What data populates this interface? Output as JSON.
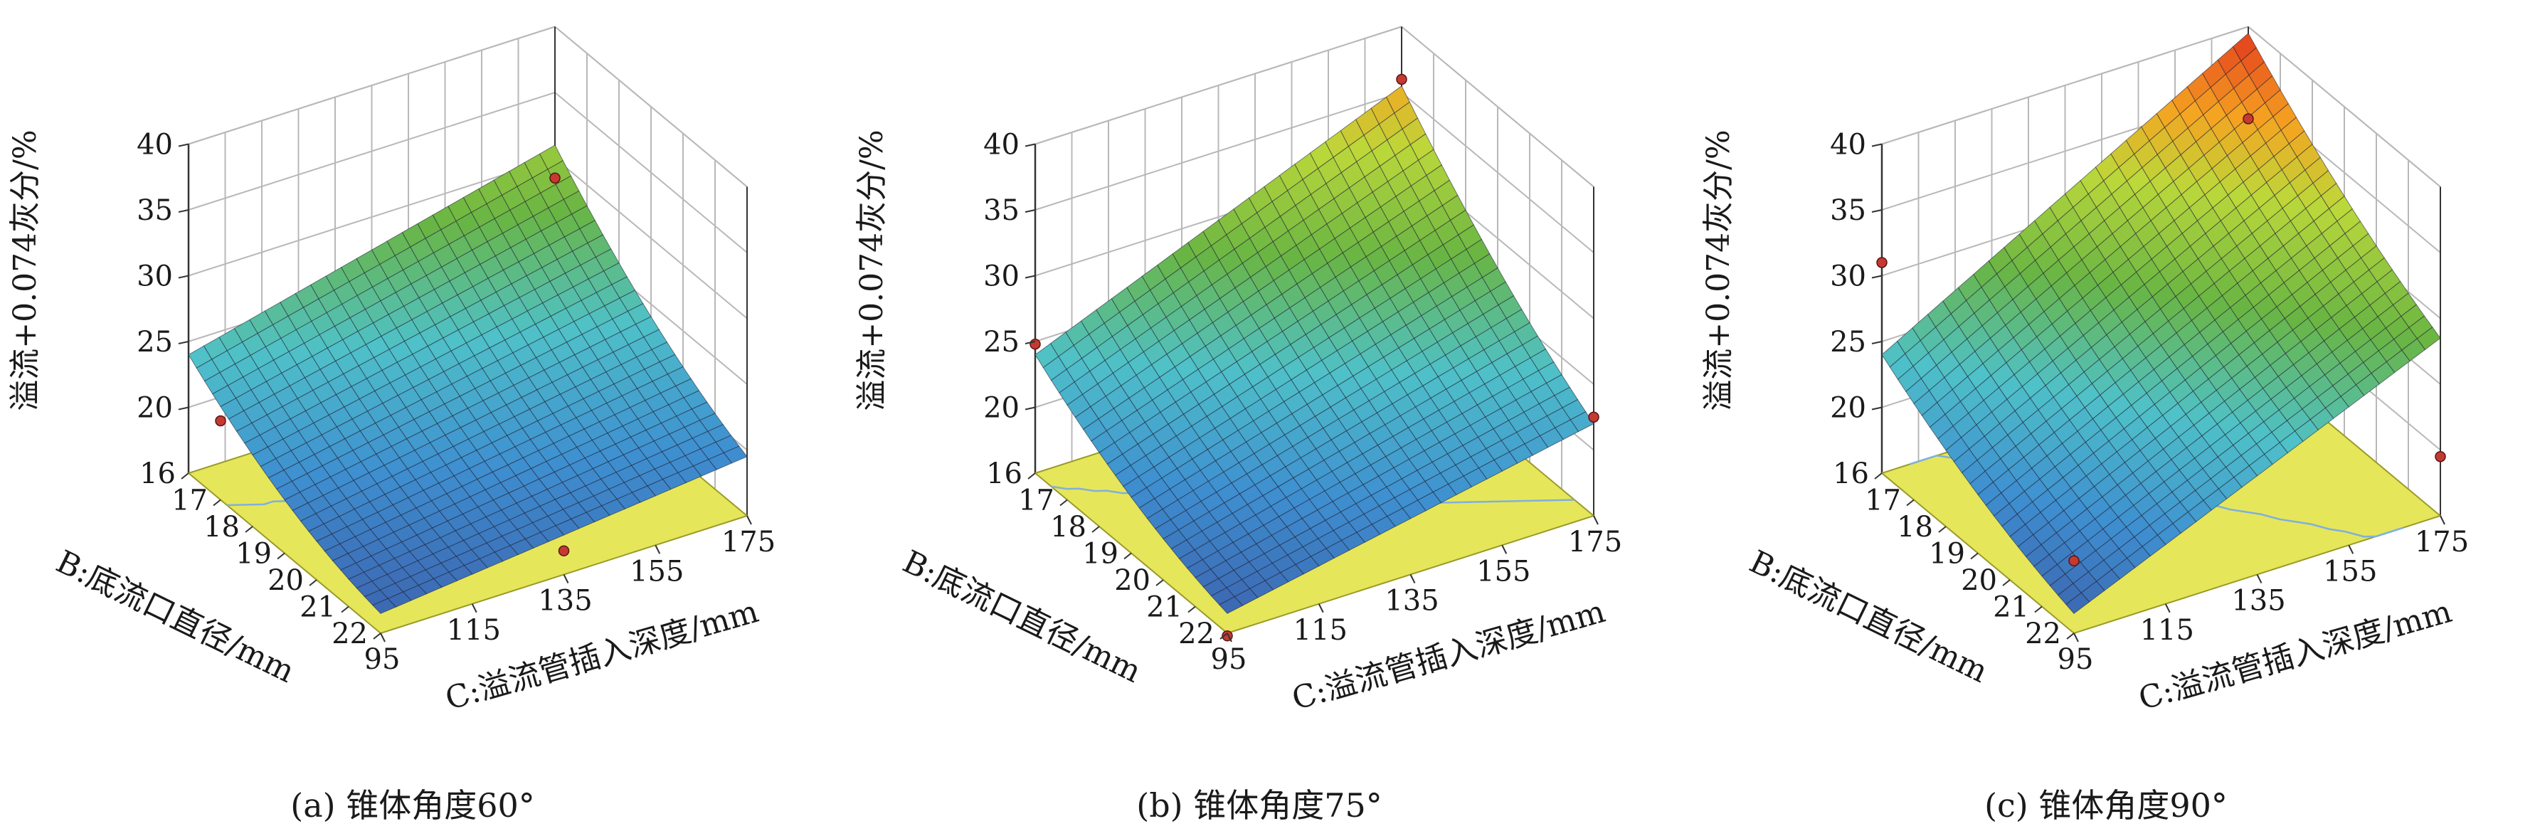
{
  "colors": {
    "floor": "#e6e65a",
    "floor_edge": "#9a9a2a",
    "contour": "#7fb0dd",
    "surface_low": "#3b4a9b",
    "surface_mid": "#69b543",
    "surface_high": "#e12a1c",
    "marker": "#c43a32"
  },
  "chart_data": [
    {
      "type": "surface3d",
      "caption": "(a) 锥体角度60°",
      "zlabel": "溢流+0.074灰分/%",
      "blabel": "B:底流口直径/mm",
      "clabel": "C:溢流管插入深度/mm",
      "b_ticks": [
        "16",
        "17",
        "18",
        "19",
        "20",
        "21",
        "22"
      ],
      "c_ticks": [
        "95",
        "115",
        "135",
        "155",
        "175"
      ],
      "z_ticks": [
        "20",
        "25",
        "30",
        "35",
        "40"
      ],
      "b_range": [
        16,
        22
      ],
      "c_range": [
        95,
        175
      ],
      "z_range": [
        15,
        40
      ],
      "corners": {
        "b16_c95": 24.0,
        "b16_c175": 31.0,
        "b22_c95": 16.5,
        "b22_c175": 19.5
      },
      "curvature": 1.2,
      "points": [
        {
          "b": 17.0,
          "c": 95,
          "z": 21.0
        },
        {
          "b": 16.0,
          "c": 175,
          "z": 28.5
        },
        {
          "b": 22.0,
          "c": 135,
          "z": 16.8
        }
      ]
    },
    {
      "type": "surface3d",
      "caption": "(b) 锥体角度75°",
      "zlabel": "溢流+0.074灰分/%",
      "blabel": "B:底流口直径/mm",
      "clabel": "C:溢流管插入深度/mm",
      "b_ticks": [
        "16",
        "17",
        "18",
        "19",
        "20",
        "21",
        "22"
      ],
      "c_ticks": [
        "95",
        "115",
        "135",
        "155",
        "175"
      ],
      "z_ticks": [
        "20",
        "25",
        "30",
        "35",
        "40"
      ],
      "b_range": [
        16,
        22
      ],
      "c_range": [
        95,
        175
      ],
      "z_range": [
        15,
        40
      ],
      "corners": {
        "b16_c95": 24.0,
        "b16_c175": 35.5,
        "b22_c95": 16.5,
        "b22_c175": 22.0
      },
      "curvature": 1.0,
      "points": [
        {
          "b": 16.0,
          "c": 95,
          "z": 24.8
        },
        {
          "b": 16.0,
          "c": 175,
          "z": 36.0
        },
        {
          "b": 22.0,
          "c": 95,
          "z": 14.8
        },
        {
          "b": 22.0,
          "c": 175,
          "z": 22.5
        }
      ]
    },
    {
      "type": "surface3d",
      "caption": "(c) 锥体角度90°",
      "zlabel": "溢流+0.074灰分/%",
      "blabel": "B:底流口直径/mm",
      "clabel": "C:溢流管插入深度/mm",
      "b_ticks": [
        "16",
        "17",
        "18",
        "19",
        "20",
        "21",
        "22"
      ],
      "c_ticks": [
        "95",
        "115",
        "135",
        "155",
        "175"
      ],
      "z_ticks": [
        "20",
        "25",
        "30",
        "35",
        "40"
      ],
      "b_range": [
        16,
        22
      ],
      "c_range": [
        95,
        175
      ],
      "z_range": [
        15,
        40
      ],
      "corners": {
        "b16_c95": 24.0,
        "b16_c175": 39.5,
        "b22_c95": 16.5,
        "b22_c175": 28.5
      },
      "curvature": 0.8,
      "points": [
        {
          "b": 16.0,
          "c": 95,
          "z": 31.0
        },
        {
          "b": 16.0,
          "c": 175,
          "z": 33.0
        },
        {
          "b": 22.0,
          "c": 95,
          "z": 20.5
        },
        {
          "b": 22.0,
          "c": 175,
          "z": 19.5
        }
      ]
    }
  ]
}
